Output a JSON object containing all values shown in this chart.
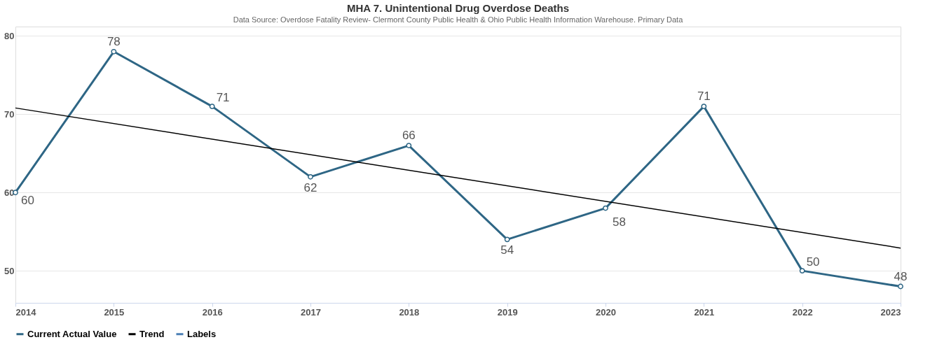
{
  "chart_data": {
    "type": "line",
    "title": "MHA 7. Unintentional Drug Overdose Deaths",
    "subtitle": "Data Source: Overdose Fatality Review- Clermont County Public Health & Ohio Public Health Information Warehouse. Primary Data",
    "x": [
      2014,
      2015,
      2016,
      2017,
      2018,
      2019,
      2020,
      2021,
      2022,
      2023
    ],
    "series": [
      {
        "name": "Current Actual Value",
        "color": "#2e6685",
        "values": [
          60,
          78,
          71,
          62,
          66,
          54,
          58,
          71,
          50,
          48
        ],
        "marker": "circle",
        "data_labels": true
      },
      {
        "name": "Trend",
        "color": "#000000",
        "x": [
          2014,
          2023
        ],
        "values": [
          70.8,
          52.9
        ]
      },
      {
        "name": "Labels",
        "color": "#4a7fb5",
        "values": [
          null,
          null,
          null,
          null,
          null,
          null,
          null,
          null,
          null,
          null
        ]
      }
    ],
    "xlim": [
      2014,
      2023
    ],
    "xticks": [
      2014,
      2015,
      2016,
      2017,
      2018,
      2019,
      2020,
      2021,
      2022,
      2023
    ],
    "ylim": [
      45.9,
      81.2
    ],
    "yticks": [
      50,
      60,
      70,
      80
    ],
    "grid": "y",
    "legend": "bottom"
  }
}
